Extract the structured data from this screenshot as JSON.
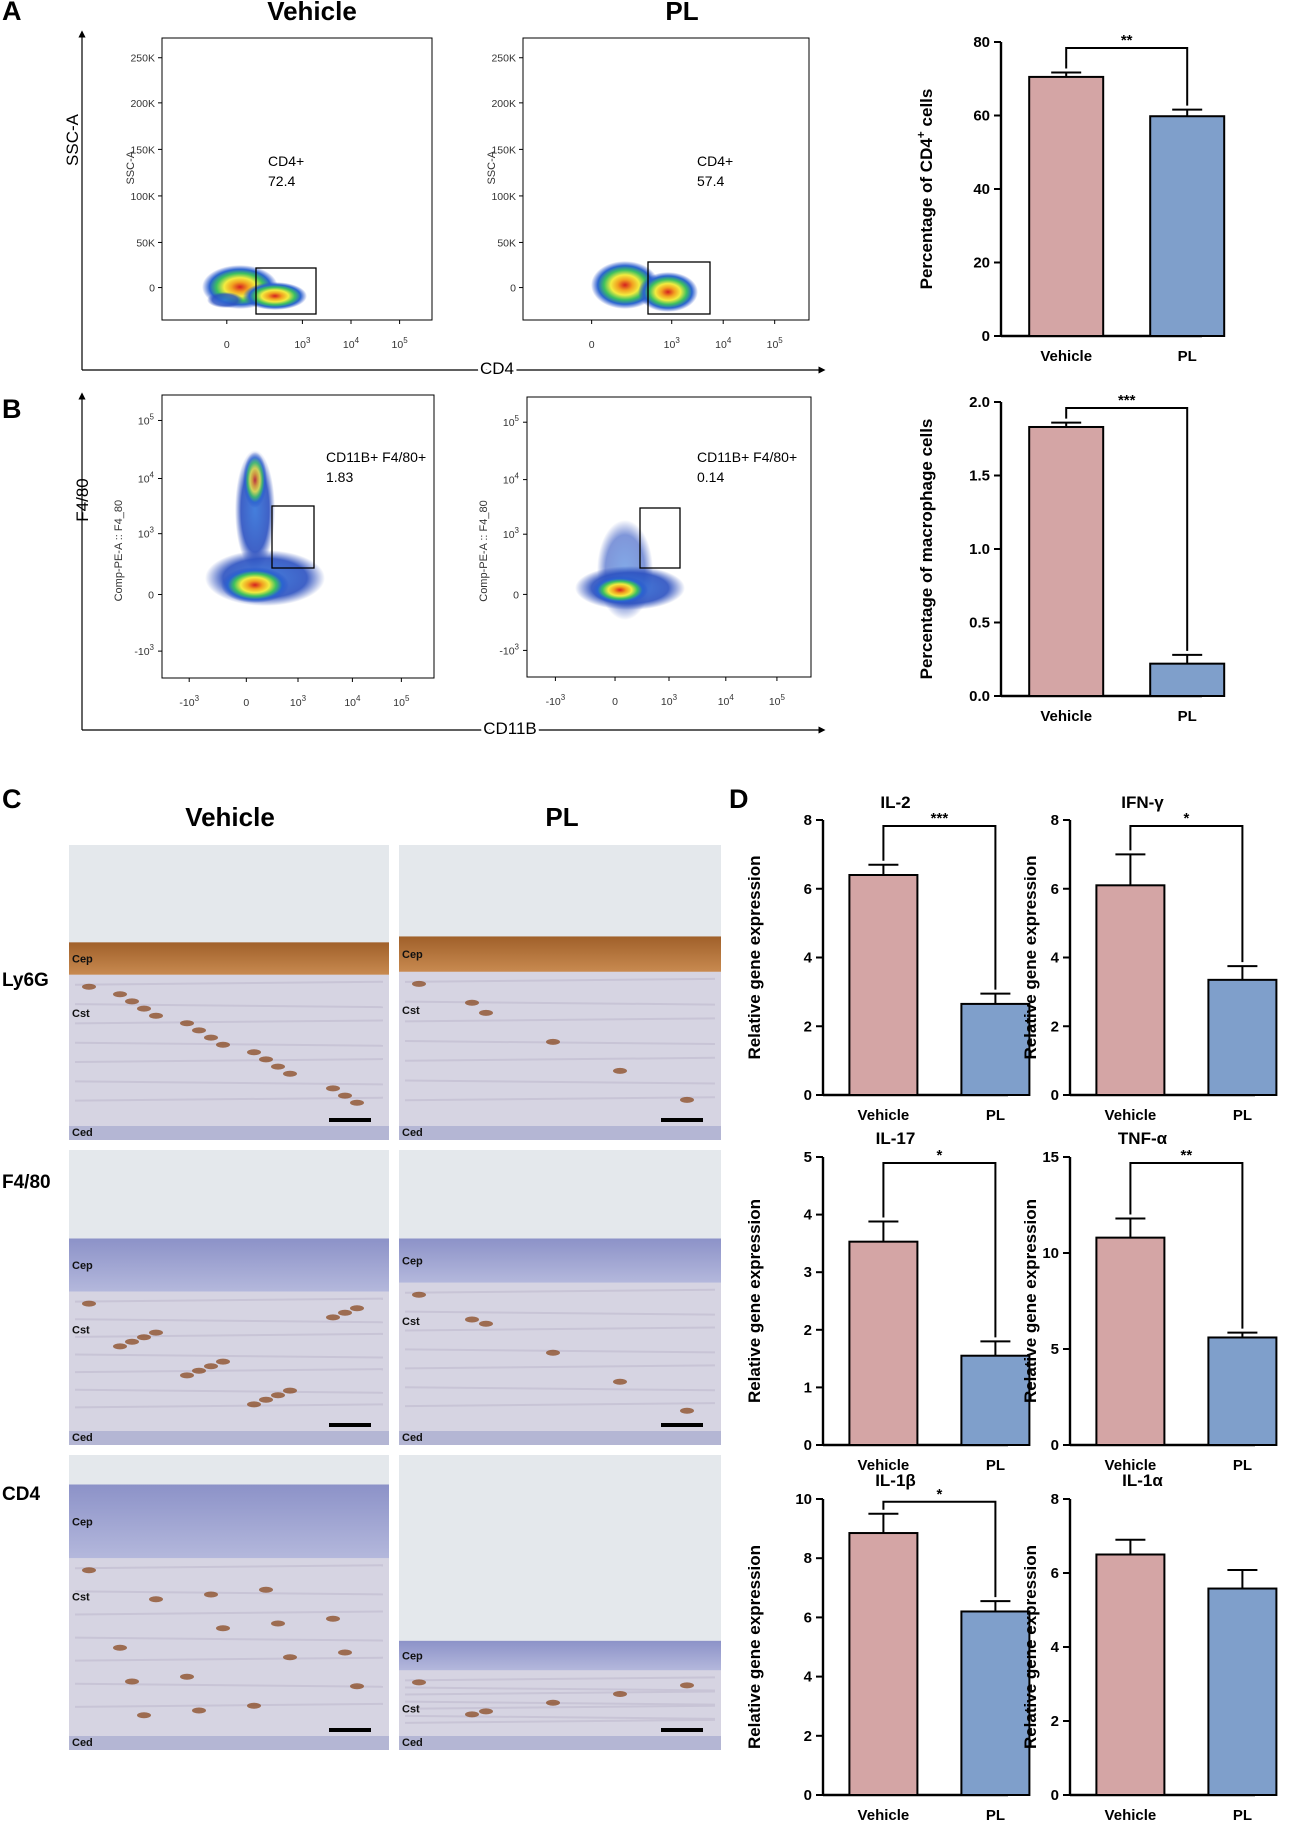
{
  "panels": {
    "A": {
      "label": "A",
      "columns": [
        "Vehicle",
        "PL"
      ],
      "x_axis": "CD4",
      "y_axis": "SSC-A",
      "plot_y_label": "SSC-A",
      "y_ticks": [
        "250K",
        "200K",
        "150K",
        "100K",
        "50K",
        "0"
      ],
      "x_ticks": [
        "0",
        "10",
        "10",
        "10"
      ],
      "x_tick_exps": [
        "",
        "3",
        "4",
        "5"
      ],
      "gates": [
        {
          "name": "CD4+",
          "value": "72.4"
        },
        {
          "name": "CD4+",
          "value": "57.4"
        }
      ]
    },
    "B": {
      "label": "B",
      "x_axis": "CD11B",
      "y_axis": "F4/80",
      "plot_y_label": "Comp-PE-A :: F4_80",
      "y_ticks": [
        "10",
        "10",
        "10",
        "0",
        "-10"
      ],
      "y_tick_exps": [
        "5",
        "4",
        "3",
        "",
        "3"
      ],
      "x_ticks": [
        "-10",
        "0",
        "10",
        "10",
        "10"
      ],
      "x_tick_exps": [
        "3",
        "",
        "3",
        "4",
        "5"
      ],
      "gates": [
        {
          "name": "CD11B+ F4/80+",
          "value": "1.83"
        },
        {
          "name": "CD11B+ F4/80+",
          "value": "0.14"
        }
      ]
    },
    "C": {
      "label": "C",
      "columns": [
        "Vehicle",
        "PL"
      ],
      "rows": [
        "Ly6G",
        "F4/80",
        "CD4"
      ],
      "layers": [
        "Cep",
        "Cst",
        "Ced"
      ]
    },
    "D": {
      "label": "D"
    }
  },
  "colors": {
    "vehicle": "#d4a5a5",
    "pl": "#7f9fcb",
    "stroke": "#000000"
  },
  "chart_data": [
    {
      "id": "A-bar",
      "type": "bar",
      "title": "",
      "categories": [
        "Vehicle",
        "PL"
      ],
      "values": [
        70.5,
        59.8
      ],
      "errors": [
        1.2,
        1.8
      ],
      "ylabel_main": "Percentage of CD4",
      "ylabel_sup": "+",
      "ylabel_tail": " cells",
      "ylim": [
        0,
        80
      ],
      "yticks": [
        "0",
        "20",
        "40",
        "60",
        "80"
      ],
      "significance": "**"
    },
    {
      "id": "B-bar",
      "type": "bar",
      "title": "",
      "categories": [
        "Vehicle",
        "PL"
      ],
      "values": [
        1.83,
        0.22
      ],
      "errors": [
        0.03,
        0.06
      ],
      "ylabel_main": "Percentage of macrophage cells",
      "ylabel_sup": "",
      "ylabel_tail": "",
      "ylim": [
        0,
        2.0
      ],
      "yticks": [
        "0.0",
        "0.5",
        "1.0",
        "1.5",
        "2.0"
      ],
      "significance": "***"
    },
    {
      "id": "D-IL2",
      "type": "bar",
      "title": "IL-2",
      "categories": [
        "Vehicle",
        "PL"
      ],
      "values": [
        6.4,
        2.65
      ],
      "errors": [
        0.3,
        0.3
      ],
      "ylabel_main": "Relative gene expression",
      "ylabel_sup": "",
      "ylabel_tail": "",
      "ylim": [
        0,
        8
      ],
      "yticks": [
        "0",
        "2",
        "4",
        "6",
        "8"
      ],
      "significance": "***"
    },
    {
      "id": "D-IFNg",
      "type": "bar",
      "title": "IFN-γ",
      "categories": [
        "Vehicle",
        "PL"
      ],
      "values": [
        6.1,
        3.35
      ],
      "errors": [
        0.9,
        0.4
      ],
      "ylabel_main": "Relative gene expression",
      "ylabel_sup": "",
      "ylabel_tail": "",
      "ylim": [
        0,
        8
      ],
      "yticks": [
        "0",
        "2",
        "4",
        "6",
        "8"
      ],
      "significance": "*"
    },
    {
      "id": "D-IL17",
      "type": "bar",
      "title": "IL-17",
      "categories": [
        "Vehicle",
        "PL"
      ],
      "values": [
        3.53,
        1.55
      ],
      "errors": [
        0.35,
        0.25
      ],
      "ylabel_main": "Relative gene expression",
      "ylabel_sup": "",
      "ylabel_tail": "",
      "ylim": [
        0,
        5
      ],
      "yticks": [
        "0",
        "1",
        "2",
        "3",
        "4",
        "5"
      ],
      "significance": "*"
    },
    {
      "id": "D-TNFa",
      "type": "bar",
      "title": "TNF-α",
      "categories": [
        "Vehicle",
        "PL"
      ],
      "values": [
        10.8,
        5.6
      ],
      "errors": [
        1.0,
        0.25
      ],
      "ylabel_main": "Relative gene expression",
      "ylabel_sup": "",
      "ylabel_tail": "",
      "ylim": [
        0,
        15
      ],
      "yticks": [
        "0",
        "5",
        "10",
        "15"
      ],
      "significance": "**"
    },
    {
      "id": "D-IL1b",
      "type": "bar",
      "title": "IL-1β",
      "categories": [
        "Vehicle",
        "PL"
      ],
      "values": [
        8.85,
        6.2
      ],
      "errors": [
        0.65,
        0.35
      ],
      "ylabel_main": "Relative gene expression",
      "ylabel_sup": "",
      "ylabel_tail": "",
      "ylim": [
        0,
        10
      ],
      "yticks": [
        "0",
        "2",
        "4",
        "6",
        "8",
        "10"
      ],
      "significance": "*"
    },
    {
      "id": "D-IL1a",
      "type": "bar",
      "title": "IL-1α",
      "categories": [
        "Vehicle",
        "PL"
      ],
      "values": [
        6.5,
        5.58
      ],
      "errors": [
        0.4,
        0.5
      ],
      "ylabel_main": "Relative gene expression",
      "ylabel_sup": "",
      "ylabel_tail": "",
      "ylim": [
        0,
        8
      ],
      "yticks": [
        "0",
        "2",
        "4",
        "6",
        "8"
      ],
      "significance": ""
    }
  ]
}
